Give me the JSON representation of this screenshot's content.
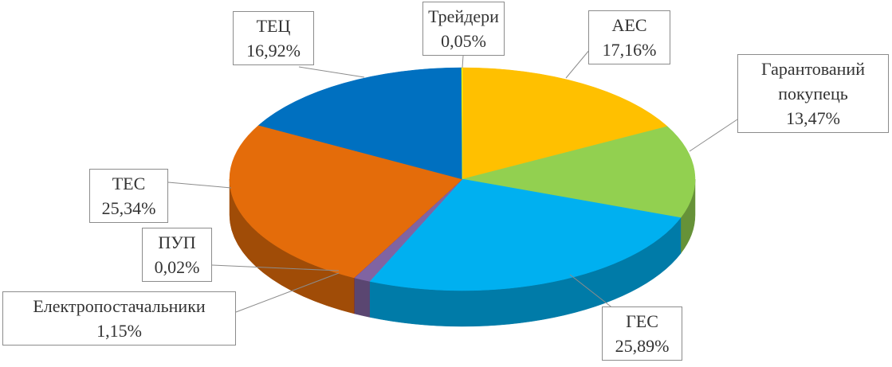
{
  "chart_data": {
    "type": "pie3d",
    "categories": [
      "АЕС",
      "Гарантований покупець",
      "ГЕС",
      "Електропостачальники",
      "ПУП",
      "ТЕС",
      "ТЕЦ",
      "Трейдери"
    ],
    "values": [
      17.16,
      13.47,
      25.89,
      1.15,
      0.02,
      25.34,
      16.92,
      0.05
    ],
    "value_labels": [
      "17,16%",
      "13,47%",
      "25,89%",
      "1,15%",
      "0,02%",
      "25,34%",
      "16,92%",
      "0,05%"
    ],
    "colors": [
      "#FFC000",
      "#92D050",
      "#00B0F0",
      "#8064A2",
      "#7030A0",
      "#E46C0A",
      "#0070C0",
      "#FFFF00"
    ]
  }
}
